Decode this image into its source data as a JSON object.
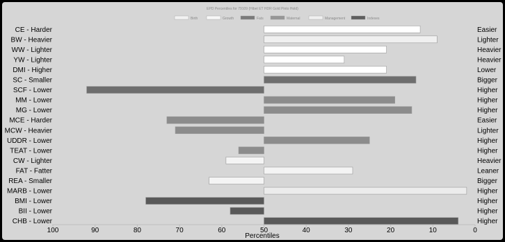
{
  "chart_data": {
    "type": "bar",
    "orientation": "horizontal",
    "title": "EPD Percentiles for 79109 (Hibet ET HDR Gold Pinto Hold)",
    "xlabel": "Percentiles",
    "xlim": [
      100,
      0
    ],
    "x_reversed": true,
    "bar_base": 50,
    "x_ticks": [
      "100",
      "90",
      "80",
      "70",
      "60",
      "50",
      "40",
      "30",
      "20",
      "10",
      "0"
    ],
    "grid": false,
    "legend_position": "top",
    "legend": [
      {
        "name": "Birth",
        "color": "#f2f2f2"
      },
      {
        "name": "Growth",
        "color": "#f7f7f7"
      },
      {
        "name": "Fats",
        "color": "#7a7a7a"
      },
      {
        "name": "Maternal",
        "color": "#969696"
      },
      {
        "name": "Management",
        "color": "#f0f0f0"
      },
      {
        "name": "Indexes",
        "color": "#5e5e5e"
      }
    ],
    "rows": [
      {
        "left": "CE - Harder",
        "right": "Easier",
        "value": 13,
        "color": "#ffffff"
      },
      {
        "left": "BW - Heavier",
        "right": "Lighter",
        "value": 9,
        "color": "#f0f0f0"
      },
      {
        "left": "WW - Lighter",
        "right": "Heavier",
        "value": 21,
        "color": "#ffffff"
      },
      {
        "left": "YW - Lighter",
        "right": "Heavier",
        "value": 31,
        "color": "#ffffff"
      },
      {
        "left": "DMI - Higher",
        "right": "Lower",
        "value": 21,
        "color": "#ffffff"
      },
      {
        "left": "SC - Smaller",
        "right": "Bigger",
        "value": 14,
        "color": "#6e6e6e"
      },
      {
        "left": "SCF - Lower",
        "right": "Higher",
        "value": 92,
        "color": "#6e6e6e"
      },
      {
        "left": "MM - Lower",
        "right": "Higher",
        "value": 19,
        "color": "#8c8c8c"
      },
      {
        "left": "MG - Lower",
        "right": "Higher",
        "value": 15,
        "color": "#8c8c8c"
      },
      {
        "left": "MCE - Harder",
        "right": "Easier",
        "value": 73,
        "color": "#8c8c8c"
      },
      {
        "left": "MCW - Heavier",
        "right": "Lighter",
        "value": 71,
        "color": "#8c8c8c"
      },
      {
        "left": "UDDR - Lower",
        "right": "Higher",
        "value": 25,
        "color": "#8c8c8c"
      },
      {
        "left": "TEAT - Lower",
        "right": "Higher",
        "value": 56,
        "color": "#8c8c8c"
      },
      {
        "left": "CW - Lighter",
        "right": "Heavier",
        "value": 59,
        "color": "#f4f4f4"
      },
      {
        "left": "FAT - Fatter",
        "right": "Leaner",
        "value": 29,
        "color": "#f4f4f4"
      },
      {
        "left": "REA - Smaller",
        "right": "Bigger",
        "value": 63,
        "color": "#f4f4f4"
      },
      {
        "left": "MARB - Lower",
        "right": "Higher",
        "value": 2,
        "color": "#ececec"
      },
      {
        "left": "BMI - Lower",
        "right": "Higher",
        "value": 78,
        "color": "#595959"
      },
      {
        "left": "BII - Lower",
        "right": "Higher",
        "value": 58,
        "color": "#595959"
      },
      {
        "left": "CHB - Lower",
        "right": "Higher",
        "value": 4,
        "color": "#595959"
      }
    ]
  }
}
